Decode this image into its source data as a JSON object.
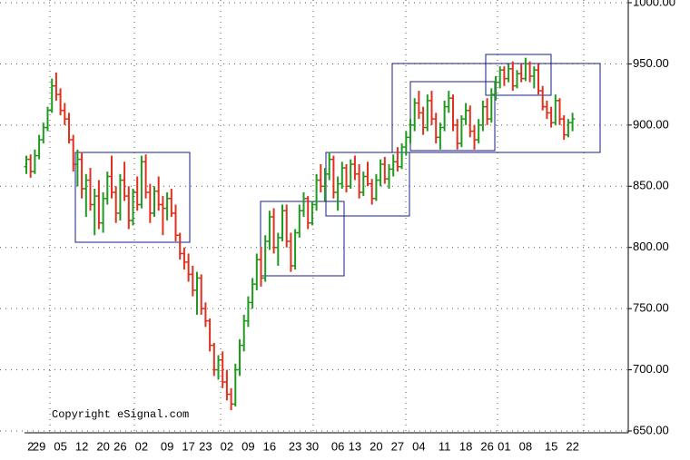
{
  "chart_data": {
    "type": "ohlc",
    "source": "Copyright eSignal.com",
    "up_color": "#1f9a1f",
    "down_color": "#e0301e",
    "grid": true,
    "ylim": [
      650,
      1000
    ],
    "yticks": [
      {
        "value": 650,
        "label": "650.00"
      },
      {
        "value": 700,
        "label": "700.00"
      },
      {
        "value": 750,
        "label": "750.00"
      },
      {
        "value": 800,
        "label": "800.00"
      },
      {
        "value": 850,
        "label": "850.00"
      },
      {
        "value": 900,
        "label": "900.00"
      },
      {
        "value": 950,
        "label": "950.00"
      },
      {
        "value": 1000,
        "label": "1000.00"
      }
    ],
    "categories": [
      null,
      "2",
      null,
      "29",
      null,
      null,
      null,
      null,
      "05",
      null,
      null,
      null,
      null,
      "12",
      null,
      null,
      null,
      null,
      "20",
      null,
      null,
      null,
      "26",
      null,
      null,
      null,
      null,
      "02",
      null,
      null,
      null,
      null,
      null,
      "09",
      null,
      null,
      null,
      null,
      "17",
      null,
      null,
      null,
      "23",
      null,
      null,
      null,
      null,
      "02",
      null,
      null,
      null,
      null,
      "09",
      null,
      null,
      null,
      null,
      "16",
      null,
      null,
      null,
      null,
      null,
      "23",
      null,
      null,
      null,
      "30",
      null,
      null,
      null,
      null,
      null,
      "06",
      null,
      null,
      null,
      "13",
      null,
      null,
      null,
      null,
      "20",
      null,
      null,
      null,
      null,
      "27",
      null,
      null,
      null,
      null,
      "04",
      null,
      null,
      null,
      null,
      null,
      "11",
      null,
      null,
      null,
      null,
      "18",
      null,
      null,
      null,
      null,
      "26",
      null,
      null,
      null,
      "01",
      null,
      null,
      null,
      null,
      "08",
      null,
      null,
      null,
      null,
      null,
      "15",
      null,
      null,
      null,
      null,
      "22"
    ],
    "ohlc": [
      [
        866,
        875,
        860,
        872
      ],
      [
        872,
        876,
        857,
        862
      ],
      [
        862,
        880,
        860,
        875
      ],
      [
        875,
        892,
        872,
        888
      ],
      [
        888,
        902,
        885,
        898
      ],
      [
        898,
        915,
        895,
        912
      ],
      [
        912,
        938,
        910,
        932
      ],
      [
        932,
        943,
        920,
        925
      ],
      [
        925,
        930,
        908,
        912
      ],
      [
        912,
        918,
        900,
        905
      ],
      [
        905,
        910,
        885,
        888
      ],
      [
        888,
        892,
        862,
        868
      ],
      [
        868,
        880,
        850,
        872
      ],
      [
        872,
        878,
        840,
        848
      ],
      [
        848,
        860,
        825,
        855
      ],
      [
        855,
        865,
        830,
        835
      ],
      [
        835,
        848,
        810,
        842
      ],
      [
        842,
        855,
        815,
        820
      ],
      [
        820,
        845,
        812,
        840
      ],
      [
        840,
        862,
        835,
        858
      ],
      [
        858,
        875,
        840,
        845
      ],
      [
        845,
        850,
        820,
        828
      ],
      [
        828,
        860,
        822,
        855
      ],
      [
        855,
        870,
        838,
        842
      ],
      [
        842,
        850,
        815,
        822
      ],
      [
        822,
        848,
        818,
        845
      ],
      [
        845,
        858,
        830,
        835
      ],
      [
        835,
        875,
        832,
        870
      ],
      [
        870,
        876,
        840,
        845
      ],
      [
        845,
        852,
        820,
        828
      ],
      [
        828,
        850,
        825,
        846
      ],
      [
        846,
        858,
        830,
        835
      ],
      [
        835,
        842,
        810,
        832
      ],
      [
        832,
        845,
        822,
        840
      ],
      [
        840,
        848,
        825,
        828
      ],
      [
        828,
        835,
        805,
        810
      ],
      [
        810,
        812,
        790,
        795
      ],
      [
        795,
        800,
        782,
        788
      ],
      [
        788,
        795,
        772,
        778
      ],
      [
        778,
        785,
        760,
        765
      ],
      [
        765,
        780,
        745,
        775
      ],
      [
        775,
        778,
        745,
        750
      ],
      [
        750,
        755,
        735,
        740
      ],
      [
        740,
        742,
        715,
        720
      ],
      [
        720,
        722,
        695,
        700
      ],
      [
        700,
        712,
        692,
        708
      ],
      [
        708,
        715,
        685,
        690
      ],
      [
        690,
        700,
        675,
        680
      ],
      [
        680,
        685,
        667,
        672
      ],
      [
        672,
        705,
        670,
        700
      ],
      [
        700,
        725,
        695,
        720
      ],
      [
        720,
        745,
        715,
        740
      ],
      [
        740,
        760,
        735,
        755
      ],
      [
        755,
        775,
        750,
        770
      ],
      [
        770,
        795,
        765,
        790
      ],
      [
        790,
        800,
        768,
        775
      ],
      [
        775,
        810,
        772,
        805
      ],
      [
        805,
        830,
        798,
        825
      ],
      [
        825,
        832,
        795,
        800
      ],
      [
        800,
        812,
        785,
        808
      ],
      [
        808,
        835,
        805,
        830
      ],
      [
        830,
        835,
        800,
        805
      ],
      [
        805,
        812,
        780,
        785
      ],
      [
        785,
        815,
        782,
        812
      ],
      [
        812,
        835,
        808,
        830
      ],
      [
        830,
        845,
        825,
        840
      ],
      [
        840,
        842,
        815,
        820
      ],
      [
        820,
        838,
        818,
        835
      ],
      [
        835,
        860,
        830,
        855
      ],
      [
        855,
        868,
        845,
        850
      ],
      [
        850,
        865,
        838,
        860
      ],
      [
        860,
        878,
        855,
        872
      ],
      [
        872,
        875,
        840,
        845
      ],
      [
        845,
        858,
        830,
        852
      ],
      [
        852,
        870,
        848,
        865
      ],
      [
        865,
        868,
        845,
        850
      ],
      [
        850,
        872,
        848,
        868
      ],
      [
        868,
        875,
        855,
        860
      ],
      [
        860,
        868,
        840,
        845
      ],
      [
        845,
        862,
        842,
        858
      ],
      [
        858,
        870,
        850,
        852
      ],
      [
        852,
        856,
        835,
        840
      ],
      [
        840,
        860,
        838,
        855
      ],
      [
        855,
        872,
        850,
        868
      ],
      [
        868,
        874,
        852,
        856
      ],
      [
        856,
        868,
        848,
        864
      ],
      [
        864,
        876,
        858,
        870
      ],
      [
        870,
        882,
        862,
        866
      ],
      [
        866,
        885,
        864,
        882
      ],
      [
        882,
        895,
        875,
        890
      ],
      [
        890,
        905,
        885,
        900
      ],
      [
        900,
        922,
        895,
        918
      ],
      [
        918,
        928,
        905,
        910
      ],
      [
        910,
        915,
        892,
        898
      ],
      [
        898,
        925,
        895,
        920
      ],
      [
        920,
        928,
        900,
        905
      ],
      [
        905,
        910,
        885,
        890
      ],
      [
        890,
        902,
        880,
        898
      ],
      [
        898,
        920,
        895,
        915
      ],
      [
        915,
        928,
        910,
        922
      ],
      [
        922,
        925,
        895,
        900
      ],
      [
        900,
        905,
        880,
        885
      ],
      [
        885,
        908,
        882,
        905
      ],
      [
        905,
        918,
        900,
        912
      ],
      [
        912,
        916,
        890,
        895
      ],
      [
        895,
        900,
        880,
        888
      ],
      [
        888,
        905,
        885,
        900
      ],
      [
        900,
        920,
        895,
        915
      ],
      [
        915,
        922,
        900,
        905
      ],
      [
        905,
        930,
        902,
        925
      ],
      [
        925,
        940,
        920,
        935
      ],
      [
        935,
        948,
        930,
        945
      ],
      [
        945,
        948,
        932,
        938
      ],
      [
        938,
        950,
        935,
        946
      ],
      [
        946,
        952,
        928,
        932
      ],
      [
        932,
        945,
        930,
        942
      ],
      [
        942,
        950,
        935,
        938
      ],
      [
        938,
        955,
        936,
        950
      ],
      [
        950,
        952,
        935,
        940
      ],
      [
        940,
        948,
        930,
        945
      ],
      [
        945,
        950,
        925,
        928
      ],
      [
        928,
        932,
        912,
        915
      ],
      [
        915,
        920,
        905,
        910
      ],
      [
        910,
        915,
        898,
        902
      ],
      [
        902,
        925,
        900,
        920
      ],
      [
        920,
        922,
        900,
        905
      ],
      [
        905,
        908,
        888,
        892
      ],
      [
        892,
        905,
        890,
        902
      ],
      [
        902,
        910,
        895,
        905
      ]
    ]
  }
}
